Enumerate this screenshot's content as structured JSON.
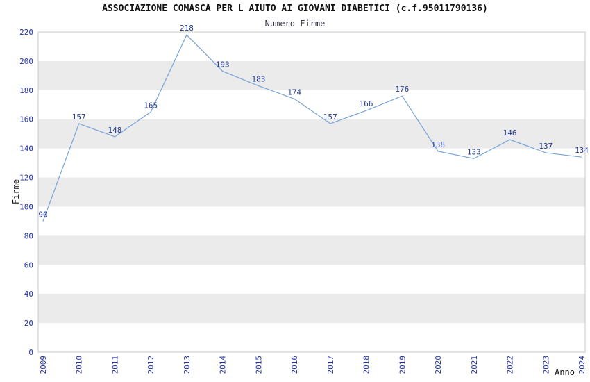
{
  "page": {
    "background": "#ffffff"
  },
  "chart_data": {
    "type": "line",
    "title": "ASSOCIAZIONE COMASCA PER L AIUTO AI GIOVANI DIABETICI (c.f.95011790136)",
    "subtitle": "Numero Firme",
    "xlabel": "Anno",
    "ylabel": "Firme",
    "categories": [
      "2009",
      "2010",
      "2011",
      "2012",
      "2013",
      "2014",
      "2015",
      "2016",
      "2017",
      "2018",
      "2019",
      "2020",
      "2021",
      "2022",
      "2023",
      "2024"
    ],
    "values": [
      90,
      157,
      148,
      165,
      218,
      193,
      183,
      174,
      157,
      166,
      176,
      138,
      133,
      146,
      137,
      134
    ],
    "ylim": [
      0,
      220
    ],
    "ytick_step": 20,
    "yticks": [
      0,
      20,
      40,
      60,
      80,
      100,
      120,
      140,
      160,
      180,
      200,
      220
    ],
    "grid": "horizontal-bands",
    "legend_position": "none",
    "data_labels_visible": true,
    "colors": {
      "line": "#76a3d6",
      "point_label": "#223a8f",
      "tick_label": "#2233aa",
      "band": "#ebebeb",
      "plot_border": "#c8c8c8",
      "axis_title": "#111111"
    }
  }
}
